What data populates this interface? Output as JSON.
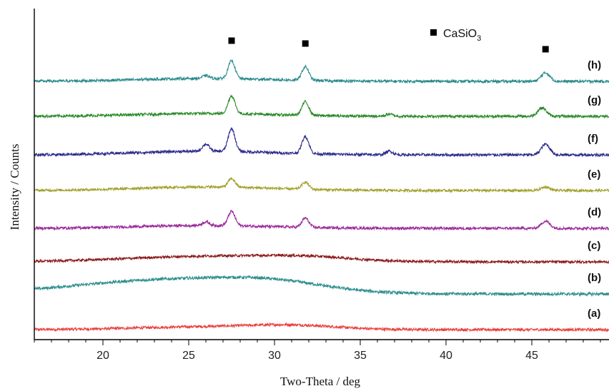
{
  "chart_data": {
    "type": "line",
    "xlabel": "Two-Theta / deg",
    "ylabel": "Intensity / Counts",
    "xlim": [
      16,
      49.5
    ],
    "x_ticks": [
      20,
      25,
      30,
      35,
      40,
      45
    ],
    "y_ticks_shown": false,
    "grid": false,
    "legend": {
      "marker": "square",
      "text": "CaSiO",
      "subscript": "3",
      "position": "top-right"
    },
    "marker_peaks_x": [
      27.5,
      31.8,
      45.8
    ],
    "series": [
      {
        "name": "(a)",
        "color": "#e8403c",
        "baseline": 8,
        "noise": 1.2,
        "humps": [
          [
            26,
            4,
            4
          ],
          [
            31.2,
            5,
            2.5
          ]
        ],
        "peaks": []
      },
      {
        "name": "(b)",
        "color": "#2f8f8f",
        "baseline": 58,
        "noise": 1.3,
        "humps": [
          [
            24,
            20,
            5.5
          ],
          [
            30,
            10,
            3
          ]
        ],
        "peaks": []
      },
      {
        "name": "(c)",
        "color": "#8b1a1a",
        "baseline": 103,
        "noise": 1.1,
        "humps": [
          [
            26.5,
            8,
            5
          ],
          [
            32,
            4,
            2.5
          ]
        ],
        "peaks": []
      },
      {
        "name": "(d)",
        "color": "#9b2c9b",
        "baseline": 150,
        "noise": 1.2,
        "humps": [
          [
            26,
            4,
            4
          ]
        ],
        "peaks": [
          [
            27.5,
            20,
            0.2
          ],
          [
            31.8,
            13,
            0.2
          ],
          [
            45.8,
            10,
            0.25
          ],
          [
            26,
            5,
            0.2
          ]
        ]
      },
      {
        "name": "(e)",
        "color": "#a0a02a",
        "baseline": 203,
        "noise": 1.1,
        "humps": [
          [
            26,
            5,
            4
          ]
        ],
        "peaks": [
          [
            27.5,
            12,
            0.2
          ],
          [
            31.8,
            10,
            0.2
          ],
          [
            45.8,
            5,
            0.25
          ]
        ]
      },
      {
        "name": "(f)",
        "color": "#2a2a8c",
        "baseline": 253,
        "noise": 1.2,
        "humps": [
          [
            26,
            5,
            4
          ]
        ],
        "peaks": [
          [
            27.5,
            32,
            0.2
          ],
          [
            31.8,
            24,
            0.2
          ],
          [
            45.8,
            15,
            0.25
          ],
          [
            26,
            10,
            0.2
          ],
          [
            36.7,
            5,
            0.2
          ]
        ]
      },
      {
        "name": "(g)",
        "color": "#2a8a2a",
        "baseline": 307,
        "noise": 1.2,
        "humps": [
          [
            26,
            4,
            4
          ]
        ],
        "peaks": [
          [
            27.5,
            25,
            0.2
          ],
          [
            31.8,
            19,
            0.2
          ],
          [
            45.6,
            12,
            0.25
          ],
          [
            36.7,
            3,
            0.2
          ]
        ]
      },
      {
        "name": "(h)",
        "color": "#2a8a8a",
        "baseline": 356,
        "noise": 1.2,
        "humps": [
          [
            26,
            4,
            4
          ]
        ],
        "peaks": [
          [
            27.5,
            25,
            0.2
          ],
          [
            31.8,
            19,
            0.2
          ],
          [
            45.8,
            12,
            0.25
          ],
          [
            26,
            4,
            0.2
          ]
        ]
      }
    ]
  }
}
